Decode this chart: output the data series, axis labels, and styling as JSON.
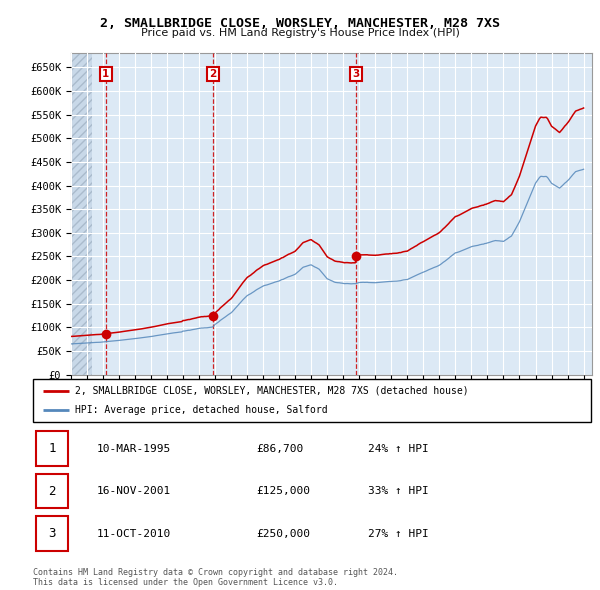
{
  "title": "2, SMALLBRIDGE CLOSE, WORSLEY, MANCHESTER, M28 7XS",
  "subtitle": "Price paid vs. HM Land Registry's House Price Index (HPI)",
  "ylim": [
    0,
    680000
  ],
  "yticks": [
    0,
    50000,
    100000,
    150000,
    200000,
    250000,
    300000,
    350000,
    400000,
    450000,
    500000,
    550000,
    600000,
    650000
  ],
  "ytick_labels": [
    "£0",
    "£50K",
    "£100K",
    "£150K",
    "£200K",
    "£250K",
    "£300K",
    "£350K",
    "£400K",
    "£450K",
    "£500K",
    "£550K",
    "£600K",
    "£650K"
  ],
  "xlim_start": 1993.0,
  "xlim_end": 2025.5,
  "sale_color": "#cc0000",
  "hpi_color": "#5588bb",
  "chart_bg": "#dce9f5",
  "hatch_bg": "#c8d8e8",
  "grid_color": "#ffffff",
  "sale_label": "2, SMALLBRIDGE CLOSE, WORSLEY, MANCHESTER, M28 7XS (detached house)",
  "hpi_label": "HPI: Average price, detached house, Salford",
  "transactions": [
    {
      "num": 1,
      "date_year": 1995.19,
      "price": 86700
    },
    {
      "num": 2,
      "date_year": 2001.88,
      "price": 125000
    },
    {
      "num": 3,
      "date_year": 2010.78,
      "price": 250000
    }
  ],
  "transaction_table": [
    {
      "num": "1",
      "date": "10-MAR-1995",
      "price": "£86,700",
      "hpi": "24% ↑ HPI"
    },
    {
      "num": "2",
      "date": "16-NOV-2001",
      "price": "£125,000",
      "hpi": "33% ↑ HPI"
    },
    {
      "num": "3",
      "date": "11-OCT-2010",
      "price": "£250,000",
      "hpi": "27% ↑ HPI"
    }
  ],
  "footer": "Contains HM Land Registry data © Crown copyright and database right 2024.\nThis data is licensed under the Open Government Licence v3.0."
}
